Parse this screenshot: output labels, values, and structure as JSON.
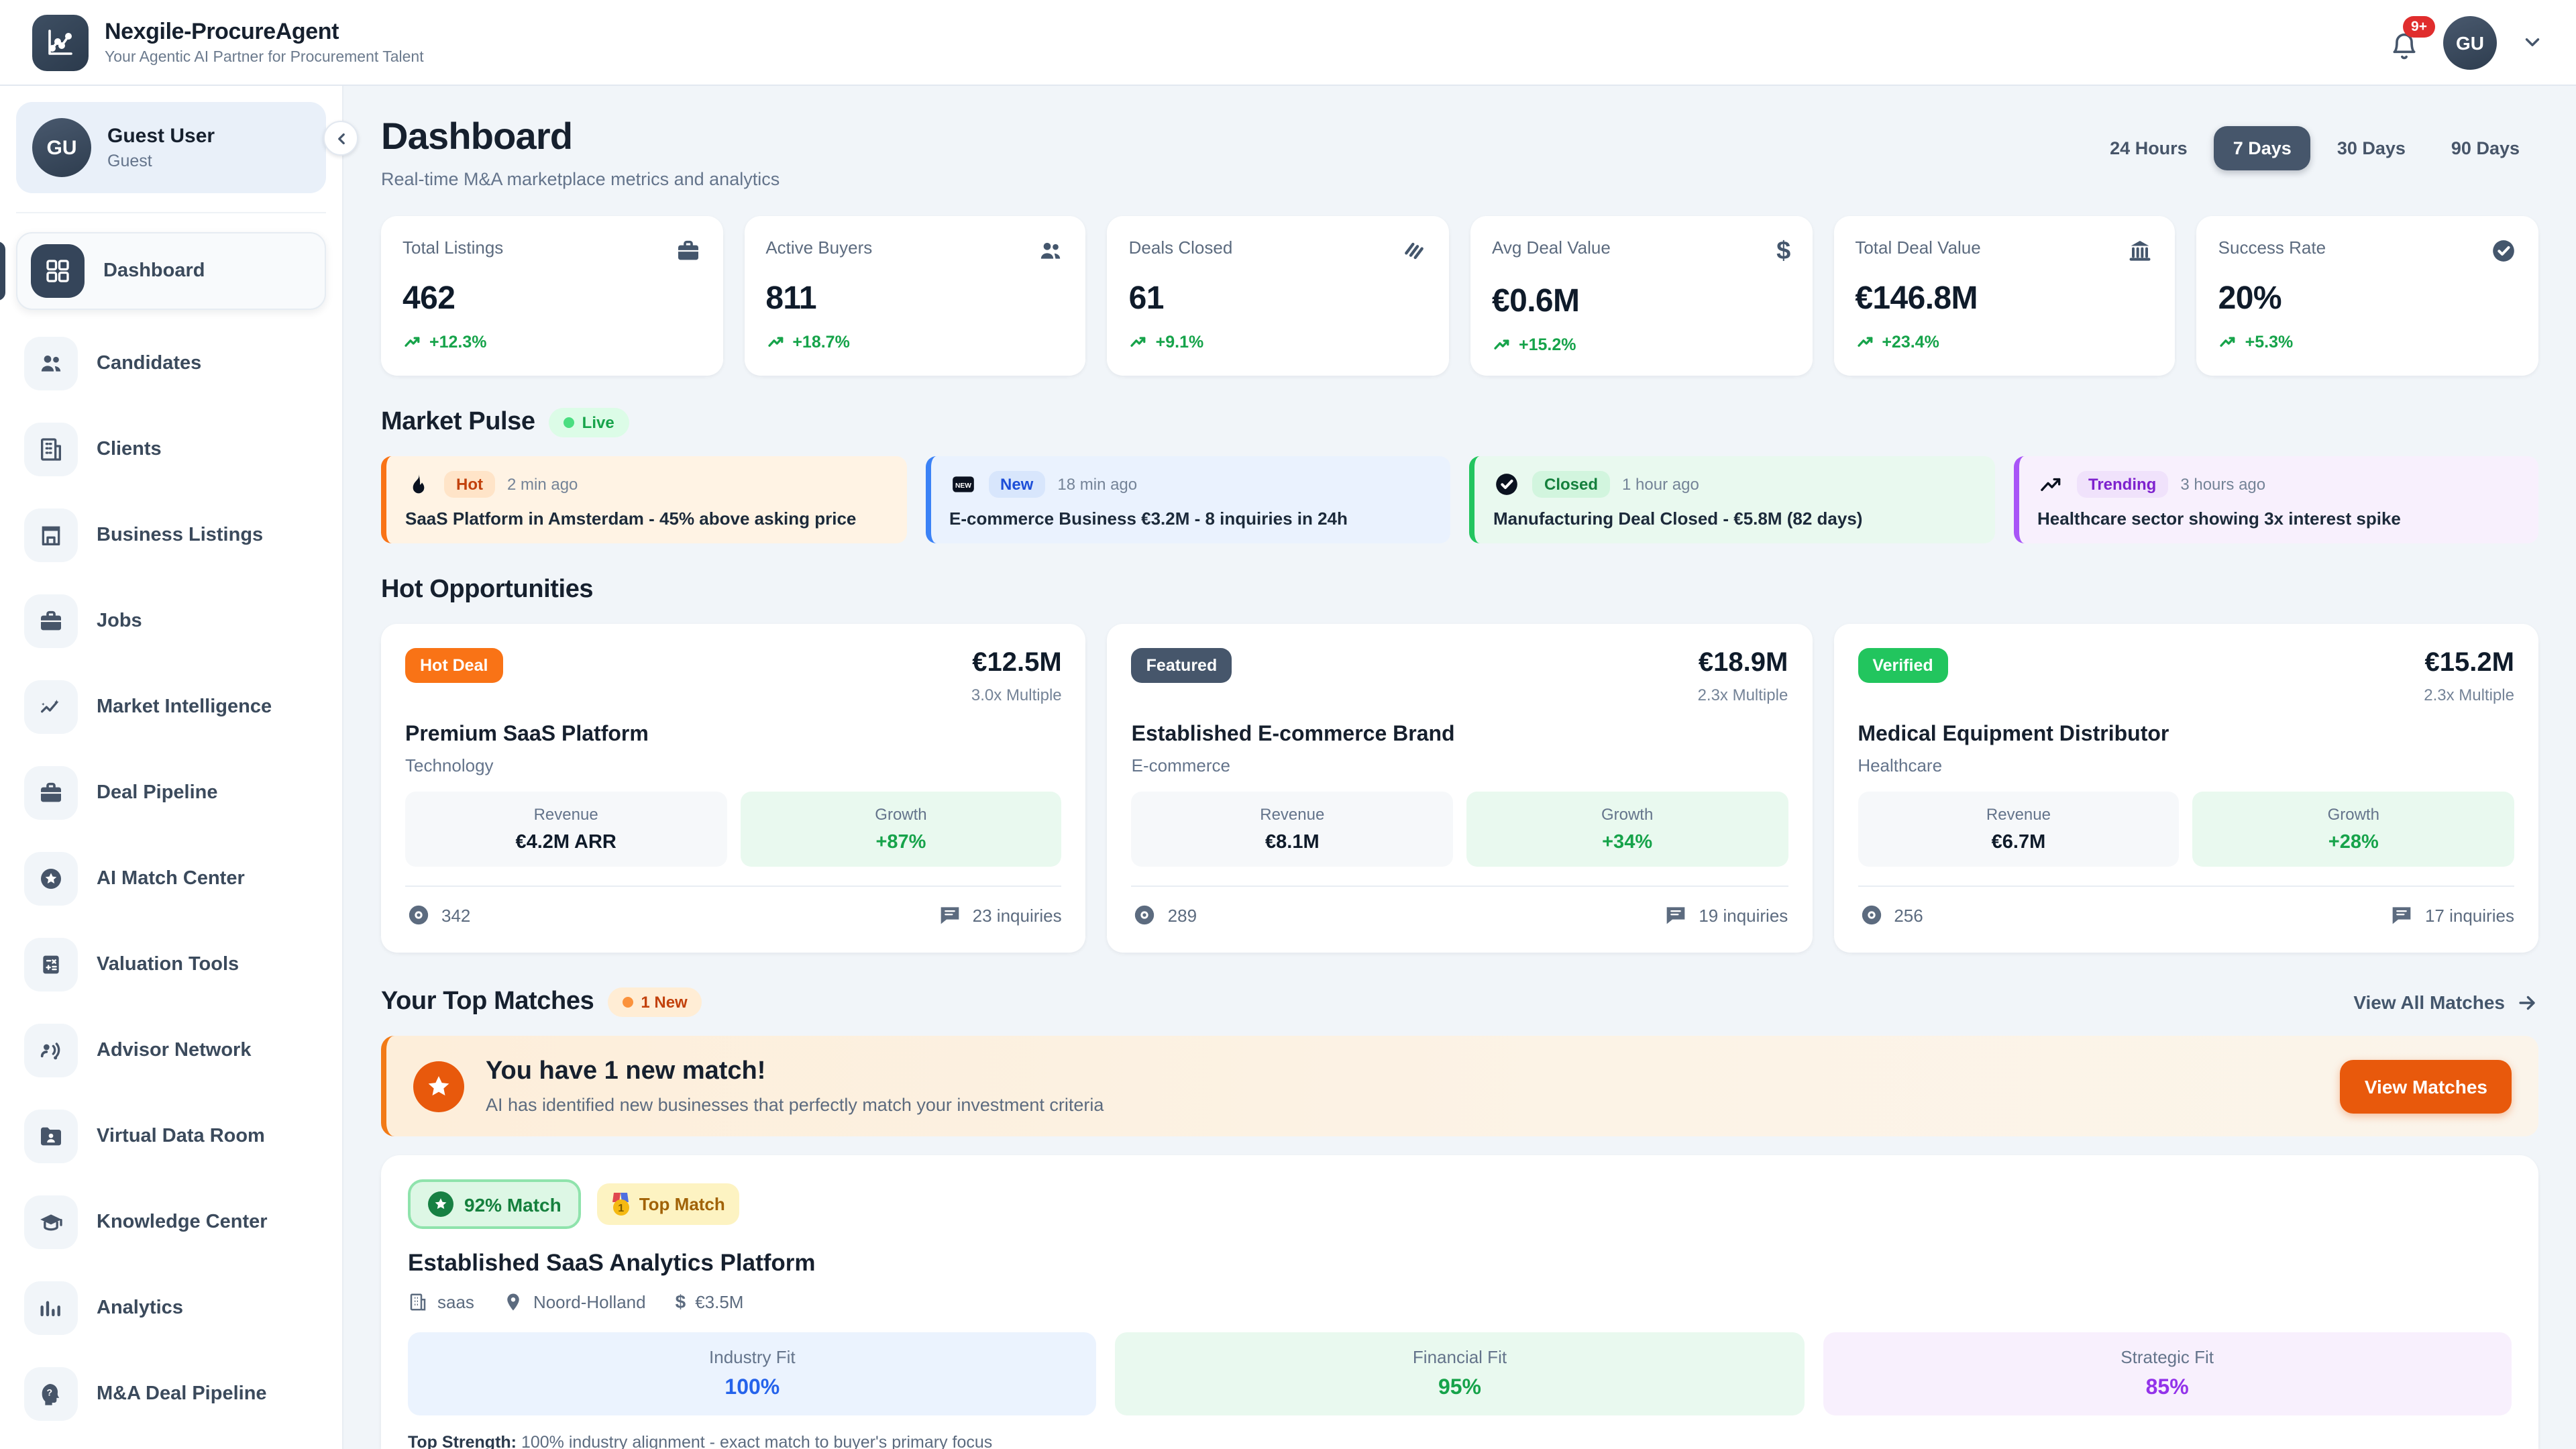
{
  "header": {
    "app_title": "Nexgile-ProcureAgent",
    "app_subtitle": "Your Agentic AI Partner for Procurement Talent",
    "logo_icon": "chart-line-icon",
    "notification_icon": "bell-icon",
    "notification_count": "9+",
    "user_initials": "GU",
    "user_menu_icon": "chevron-down-icon"
  },
  "sidebar": {
    "user": {
      "initials": "GU",
      "name": "Guest User",
      "role": "Guest"
    },
    "collapse_icon": "chevron-left-icon",
    "items": [
      {
        "label": "Dashboard",
        "icon": "dashboard-grid-icon",
        "active": true
      },
      {
        "label": "Candidates",
        "icon": "users-icon",
        "active": false
      },
      {
        "label": "Clients",
        "icon": "building-icon",
        "active": false
      },
      {
        "label": "Business Listings",
        "icon": "storefront-icon",
        "active": false
      },
      {
        "label": "Jobs",
        "icon": "briefcase-icon",
        "active": false
      },
      {
        "label": "Market Intelligence",
        "icon": "trend-sparkle-icon",
        "active": false
      },
      {
        "label": "Deal Pipeline",
        "icon": "briefcase-icon",
        "active": false
      },
      {
        "label": "AI Match Center",
        "icon": "star-circle-icon",
        "active": false
      },
      {
        "label": "Valuation Tools",
        "icon": "calculator-icon",
        "active": false
      },
      {
        "label": "Advisor Network",
        "icon": "advisor-voice-icon",
        "active": false
      },
      {
        "label": "Virtual Data Room",
        "icon": "folder-user-icon",
        "active": false
      },
      {
        "label": "Knowledge Center",
        "icon": "graduation-cap-icon",
        "active": false
      },
      {
        "label": "Analytics",
        "icon": "bar-chart-icon",
        "active": false
      },
      {
        "label": "M&A Deal Pipeline",
        "icon": "help-head-icon",
        "active": false
      }
    ]
  },
  "page": {
    "title": "Dashboard",
    "subtitle": "Real-time M&A marketplace metrics and analytics",
    "time_filters": [
      {
        "label": "24 Hours",
        "active": false
      },
      {
        "label": "7 Days",
        "active": true
      },
      {
        "label": "30 Days",
        "active": false
      },
      {
        "label": "90 Days",
        "active": false
      }
    ]
  },
  "stats": [
    {
      "label": "Total Listings",
      "value": "462",
      "change": "+12.3%",
      "icon": "briefcase-icon"
    },
    {
      "label": "Active Buyers",
      "value": "811",
      "change": "+18.7%",
      "icon": "users-icon"
    },
    {
      "label": "Deals Closed",
      "value": "61",
      "change": "+9.1%",
      "icon": "handshake-icon"
    },
    {
      "label": "Avg Deal Value",
      "value": "€0.6M",
      "change": "+15.2%",
      "icon": "dollar-icon"
    },
    {
      "label": "Total Deal Value",
      "value": "€146.8M",
      "change": "+23.4%",
      "icon": "landmark-icon"
    },
    {
      "label": "Success Rate",
      "value": "20%",
      "change": "+5.3%",
      "icon": "check-circle-icon"
    }
  ],
  "market_pulse": {
    "title": "Market Pulse",
    "live_label": "Live",
    "items": [
      {
        "icon": "flame-icon",
        "badge": "Hot",
        "time": "2 min ago",
        "text": "SaaS Platform in Amsterdam - 45% above asking price",
        "theme": "orange"
      },
      {
        "icon": "new-box-icon",
        "badge": "New",
        "time": "18 min ago",
        "text": "E-commerce Business €3.2M - 8 inquiries in 24h",
        "theme": "blue"
      },
      {
        "icon": "check-circle-icon",
        "badge": "Closed",
        "time": "1 hour ago",
        "text": "Manufacturing Deal Closed - €5.8M (82 days)",
        "theme": "green"
      },
      {
        "icon": "trending-up-icon",
        "badge": "Trending",
        "time": "3 hours ago",
        "text": "Healthcare sector showing 3x interest spike",
        "theme": "purple"
      }
    ]
  },
  "hot_opportunities": {
    "title": "Hot Opportunities",
    "revenue_label": "Revenue",
    "growth_label": "Growth",
    "cards": [
      {
        "badge": "Hot Deal",
        "badge_theme": "orange",
        "price": "€12.5M",
        "multiple": "3.0x Multiple",
        "name": "Premium SaaS Platform",
        "category": "Technology",
        "revenue": "€4.2M ARR",
        "growth": "+87%",
        "views": "342",
        "inquiries": "23 inquiries"
      },
      {
        "badge": "Featured",
        "badge_theme": "slate",
        "price": "€18.9M",
        "multiple": "2.3x Multiple",
        "name": "Established E-commerce Brand",
        "category": "E-commerce",
        "revenue": "€8.1M",
        "growth": "+34%",
        "views": "289",
        "inquiries": "19 inquiries"
      },
      {
        "badge": "Verified",
        "badge_theme": "green",
        "price": "€15.2M",
        "multiple": "2.3x Multiple",
        "name": "Medical Equipment Distributor",
        "category": "Healthcare",
        "revenue": "€6.7M",
        "growth": "+28%",
        "views": "256",
        "inquiries": "17 inquiries"
      }
    ]
  },
  "top_matches": {
    "title": "Your Top Matches",
    "new_badge": "1 New",
    "view_all_label": "View All Matches",
    "banner": {
      "icon": "star-icon",
      "title": "You have 1 new match!",
      "subtitle": "AI has identified new businesses that perfectly match your investment criteria",
      "button_label": "View Matches"
    },
    "match": {
      "match_percent_label": "92% Match",
      "top_match_label": "Top Match",
      "name": "Established SaaS Analytics Platform",
      "meta": {
        "type": "saas",
        "location": "Noord-Holland",
        "price": "€3.5M"
      },
      "fits": [
        {
          "label": "Industry Fit",
          "value": "100%",
          "theme": "blueT"
        },
        {
          "label": "Financial Fit",
          "value": "95%",
          "theme": "greenT"
        },
        {
          "label": "Strategic Fit",
          "value": "85%",
          "theme": "purpleT"
        }
      ],
      "top_strength_label": "Top Strength:",
      "top_strength_text": "100% industry alignment - exact match to buyer's primary focus"
    }
  },
  "colors": {
    "accent_orange": "#e8590c",
    "slate_dark": "#35455a",
    "green": "#16a34a",
    "blue": "#2563eb",
    "purple": "#9333ea",
    "red_badge": "#e02d2d",
    "background": "#f1f5f9"
  }
}
